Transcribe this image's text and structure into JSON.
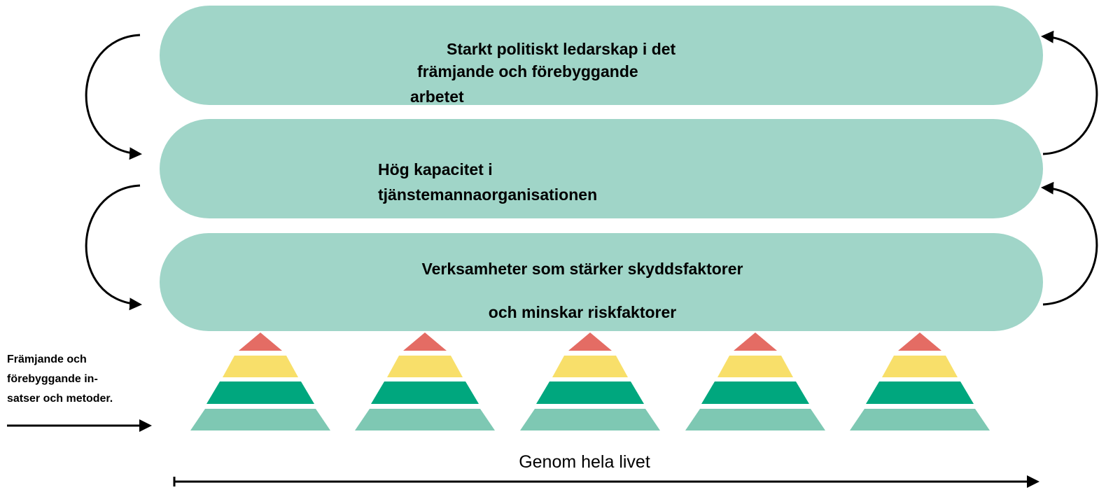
{
  "layers": [
    {
      "lines": [
        "Starkt politiskt ledarskap i det",
        "främjande och förebyggande",
        "arbetet"
      ]
    },
    {
      "lines": [
        "Hög kapacitet i",
        "tjänstemannaorganisationen"
      ]
    },
    {
      "lines": [
        "Verksamheter som stärker skyddsfaktorer",
        "och minskar riskfaktorer"
      ]
    }
  ],
  "side_label": {
    "lines": [
      "Främjande och",
      "förebyggande in-",
      "satser och metoder."
    ]
  },
  "timeline_label": "Genom hela livet"
}
